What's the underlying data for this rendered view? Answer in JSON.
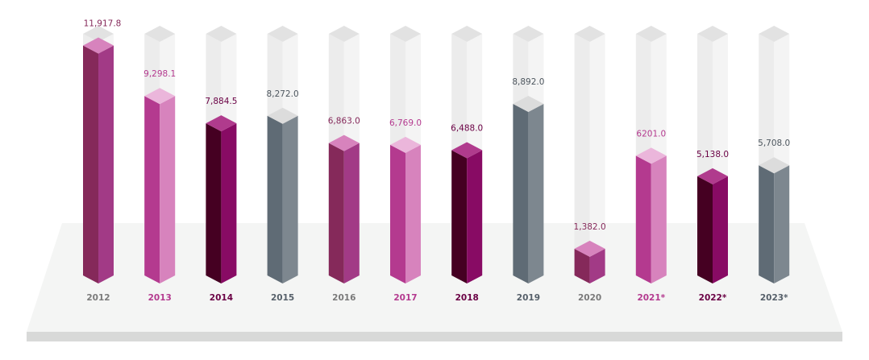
{
  "chart_data": {
    "type": "bar",
    "title": "",
    "xlabel": "",
    "ylabel": "",
    "ylim": [
      0,
      12500
    ],
    "grid": false,
    "legend": "none",
    "categories": [
      "2012",
      "2013",
      "2014",
      "2015",
      "2016",
      "2017",
      "2018",
      "2019",
      "2020",
      "2021*",
      "2022*",
      "2023*"
    ],
    "values": [
      11917.8,
      9298.1,
      7884.5,
      8272.0,
      6863.0,
      6769.0,
      6488.0,
      8892.0,
      1382.0,
      6201.0,
      5138.0,
      5708.0
    ],
    "value_labels": [
      "11,917.8",
      "9,298.1",
      "7,884.5",
      "8,272.0",
      "6,863.0",
      "6,769.0",
      "6,488.0",
      "8,892.0",
      "1,382.0",
      "6201.0",
      "5,138.0",
      "5,708.0"
    ],
    "bar_colors": [
      "plum",
      "magenta",
      "dark-magenta",
      "slate",
      "plum",
      "magenta",
      "dark-magenta",
      "slate",
      "plum",
      "magenta",
      "dark-magenta",
      "slate"
    ]
  },
  "colors": {
    "plum": {
      "left": "#85295a",
      "right": "#a23a86",
      "top": "#d783bd",
      "label": "#85295a",
      "year": "#7a7a7a"
    },
    "magenta": {
      "left": "#b43a8f",
      "right": "#d783bd",
      "top": "#ebb6db",
      "label": "#b43a8f",
      "year": "#b43a8f"
    },
    "dark-magenta": {
      "left": "#450022",
      "right": "#880b64",
      "top": "#b03b8d",
      "label": "#6a0044",
      "year": "#6a0044"
    },
    "slate": {
      "left": "#5f6b75",
      "right": "#7d878f",
      "top": "#dcdcdc",
      "label": "#4d565e",
      "year": "#56606a"
    },
    "pale": {
      "left": "#ececec",
      "right": "#f4f4f4",
      "top": "#e2e2e2"
    },
    "floor": {
      "top": "#f4f5f4",
      "edge": "#d8d9d8"
    }
  }
}
